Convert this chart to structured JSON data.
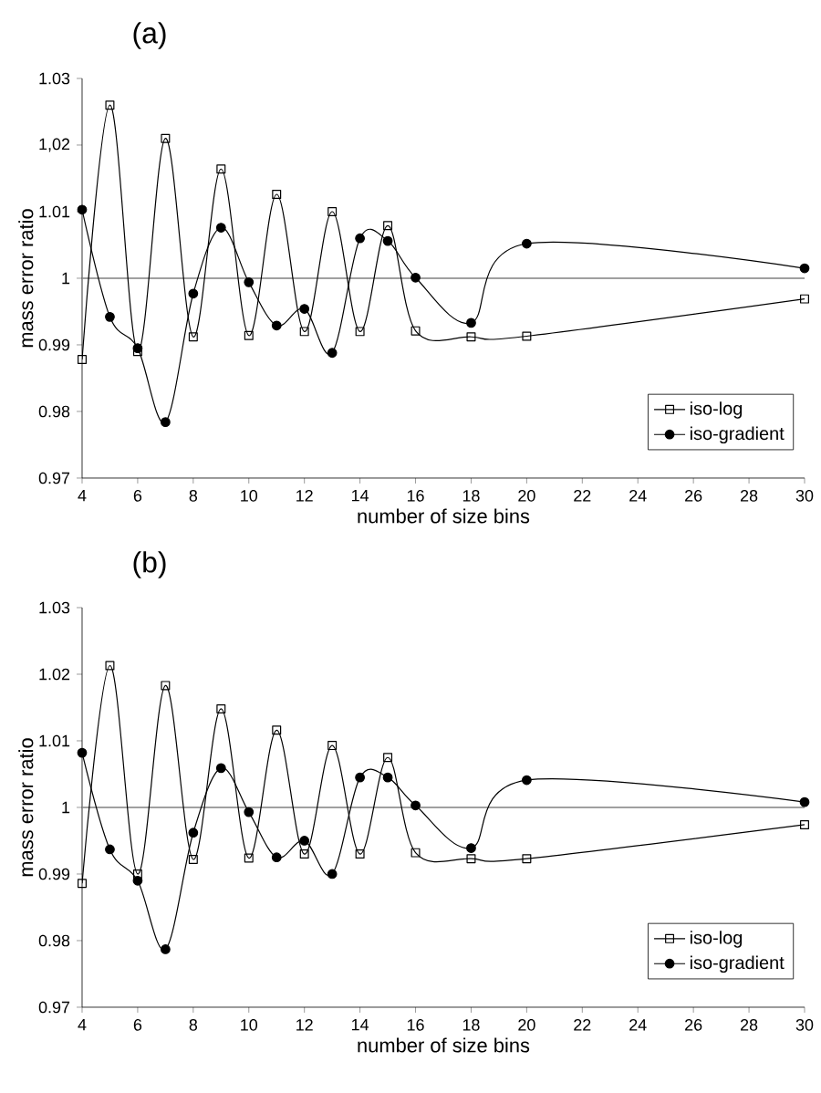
{
  "chart_data": [
    {
      "type": "line",
      "title": "(a)",
      "xlabel": "number of size bins",
      "ylabel": "mass error ratio",
      "x": [
        4,
        5,
        6,
        7,
        8,
        9,
        10,
        11,
        12,
        13,
        14,
        15,
        16,
        18,
        20,
        30
      ],
      "xlim": [
        4,
        30
      ],
      "xticks": [
        4,
        6,
        8,
        10,
        12,
        14,
        16,
        18,
        20,
        22,
        24,
        26,
        28,
        30
      ],
      "ylim": [
        0.97,
        1.03
      ],
      "yticks": [
        0.97,
        0.98,
        0.99,
        1,
        1.01,
        {
          "value": 1.02,
          "label": "1,02"
        },
        1.03
      ],
      "legend": "bottom right",
      "ref_lines": [
        {
          "axis": "y",
          "value": 1,
          "color": "#808080"
        }
      ],
      "series": [
        {
          "name": "iso-log",
          "color": "#000000",
          "marker": "square",
          "values": [
            0.9878,
            1.026,
            0.989,
            1.021,
            0.9912,
            1.0164,
            0.9914,
            1.0126,
            0.992,
            1.01,
            0.992,
            1.0079,
            0.9921,
            0.9912,
            0.9913,
            0.9969
          ]
        },
        {
          "name": "iso-gradient",
          "color": "#000000",
          "marker": "circle",
          "values": [
            1.0103,
            0.9942,
            0.9895,
            0.9784,
            0.9977,
            1.0076,
            0.9994,
            0.9929,
            0.9954,
            0.9888,
            1.006,
            1.0056,
            1.0001,
            0.9933,
            1.0052,
            1.0015
          ]
        }
      ]
    },
    {
      "type": "line",
      "title": "(b)",
      "xlabel": "number of size bins",
      "ylabel": "mass error ratio",
      "x": [
        4,
        5,
        6,
        7,
        8,
        9,
        10,
        11,
        12,
        13,
        14,
        15,
        16,
        18,
        20,
        30
      ],
      "xlim": [
        4,
        30
      ],
      "xticks": [
        4,
        6,
        8,
        10,
        12,
        14,
        16,
        18,
        20,
        22,
        24,
        26,
        28,
        30
      ],
      "ylim": [
        0.97,
        1.03
      ],
      "yticks": [
        0.97,
        0.98,
        0.99,
        1,
        1.01,
        1.02,
        1.03
      ],
      "legend": "bottom right",
      "ref_lines": [
        {
          "axis": "y",
          "value": 1,
          "color": "#808080"
        }
      ],
      "series": [
        {
          "name": "iso-log",
          "color": "#000000",
          "marker": "square",
          "values": [
            0.9886,
            1.0213,
            0.99,
            1.0183,
            0.9922,
            1.0148,
            0.9924,
            1.0116,
            0.993,
            1.0093,
            0.993,
            1.0075,
            0.9932,
            0.9923,
            0.9923,
            0.9974
          ]
        },
        {
          "name": "iso-gradient",
          "color": "#000000",
          "marker": "circle",
          "values": [
            1.0082,
            0.9937,
            0.989,
            0.9787,
            0.9962,
            1.0059,
            0.9993,
            0.9925,
            0.995,
            0.99,
            1.0045,
            1.0045,
            1.0003,
            0.9939,
            1.0041,
            1.0008
          ]
        }
      ]
    }
  ]
}
